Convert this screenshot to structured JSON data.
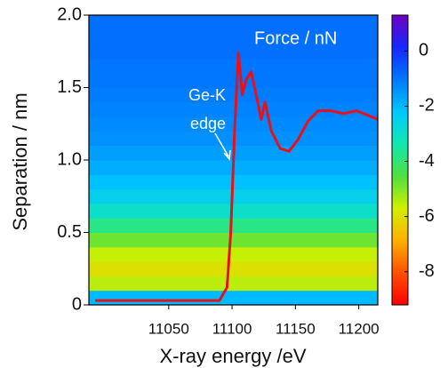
{
  "chart_data": {
    "type": "heatmap",
    "xlabel": "X-ray energy /eV",
    "ylabel": "Separation / nm",
    "colorbar_label": "Force / nN",
    "annotation": [
      "Ge-K",
      "edge"
    ],
    "xlim": [
      10987,
      11215
    ],
    "xticks": [
      11050,
      11100,
      11150,
      11200
    ],
    "ylim": [
      0,
      2
    ],
    "yticks": [
      0,
      0.5,
      {
        "value": 1,
        "label": "1.0"
      },
      1.5,
      {
        "value": 2,
        "label": "2.0"
      }
    ],
    "clim": [
      -9.2,
      1.3
    ],
    "cticks": [
      0,
      -2,
      -4,
      -6,
      -8
    ],
    "colorscale": [
      "#7000c0",
      "#1428ff",
      "#0078ff",
      "#00c8ff",
      "#10e8b0",
      "#50e040",
      "#d0f000",
      "#ffb000",
      "#ff5000",
      "#ff0000"
    ],
    "heatmap": {
      "y_edges": [
        0,
        0.1,
        0.2,
        0.3,
        0.4,
        0.5,
        0.6,
        0.7,
        0.8,
        0.9,
        1.0,
        1.1,
        1.2,
        1.3,
        1.4,
        1.5,
        1.6,
        1.7,
        1.8,
        1.9,
        2.0
      ],
      "force": [
        -2,
        -5.5,
        -6,
        -5.6,
        -4.8,
        -3.8,
        -3,
        -2.5,
        -2.1,
        -1.8,
        -1.6,
        -1.4,
        -1.3,
        -1.2,
        -1.1,
        -1,
        -1,
        -0.9,
        -0.9,
        -0.9
      ]
    },
    "curve": {
      "color": "#e8101a",
      "x": [
        10992,
        11090,
        11096,
        11099,
        11102,
        11105,
        11108,
        11111,
        11115,
        11119,
        11123,
        11126,
        11131,
        11138,
        11145,
        11152,
        11160,
        11168,
        11178,
        11188,
        11198,
        11207,
        11215
      ],
      "values": [
        0.03,
        0.03,
        0.12,
        0.5,
        1.2,
        1.74,
        1.45,
        1.55,
        1.61,
        1.45,
        1.28,
        1.4,
        1.2,
        1.08,
        1.06,
        1.14,
        1.27,
        1.34,
        1.34,
        1.32,
        1.34,
        1.31,
        1.28
      ]
    }
  }
}
